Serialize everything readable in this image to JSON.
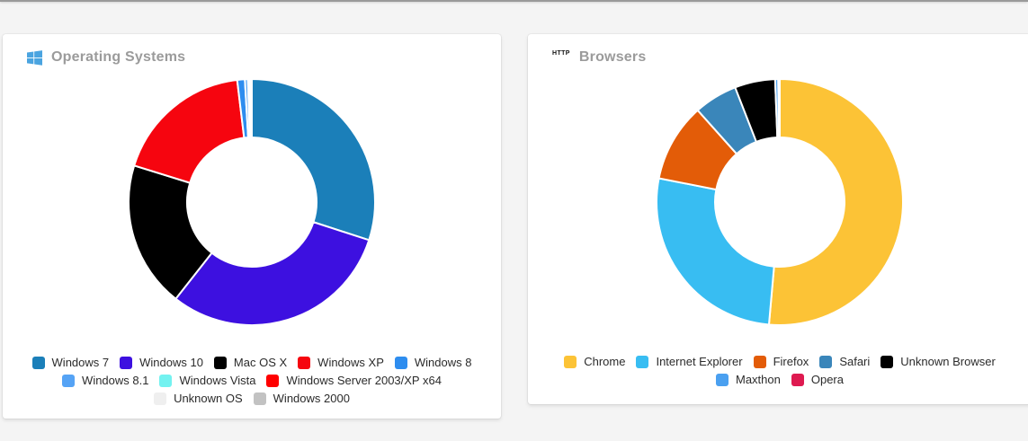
{
  "page": {
    "background": "#f4f4f4",
    "accent": "#4aa4e0"
  },
  "os_card": {
    "title": "Operating Systems",
    "icon": "windows-logo-icon",
    "icon_color": "#4AA4E0",
    "chart_data": {
      "type": "pie",
      "subtype": "donut",
      "title": "Operating Systems",
      "legend_position": "bottom",
      "units": "percent",
      "series": [
        {
          "label": "Windows 7",
          "color": "#1B7FB9",
          "value": 30.0
        },
        {
          "label": "Windows 10",
          "color": "#3D10E0",
          "value": 30.6
        },
        {
          "label": "Mac OS X",
          "color": "#000000",
          "value": 19.2
        },
        {
          "label": "Windows XP",
          "color": "#F6050F",
          "value": 18.3
        },
        {
          "label": "Windows 8",
          "color": "#2E8DEF",
          "value": 1.0
        },
        {
          "label": "Windows 8.1",
          "color": "#55A3F5",
          "value": 0.4
        },
        {
          "label": "Windows Vista",
          "color": "#73F2F0",
          "value": 0.2
        },
        {
          "label": "Windows Server 2003/XP x64",
          "color": "#FF0000",
          "value": 0.2
        },
        {
          "label": "Unknown OS",
          "color": "#EFEFEF",
          "value": 0.05
        },
        {
          "label": "Windows 2000",
          "color": "#C2C2C2",
          "value": 0.05
        }
      ]
    }
  },
  "browsers_card": {
    "title": "Browsers",
    "icon": "http-icon",
    "icon_label": "HTTP",
    "chart_data": {
      "type": "pie",
      "subtype": "donut",
      "title": "Browsers",
      "legend_position": "bottom",
      "units": "percent",
      "series": [
        {
          "label": "Chrome",
          "color": "#FCC336",
          "value": 51.4
        },
        {
          "label": "Internet Explorer",
          "color": "#38BDF2",
          "value": 26.7
        },
        {
          "label": "Firefox",
          "color": "#E35C08",
          "value": 10.3
        },
        {
          "label": "Safari",
          "color": "#3A86BA",
          "value": 5.7
        },
        {
          "label": "Unknown Browser",
          "color": "#000000",
          "value": 5.3
        },
        {
          "label": "Maxthon",
          "color": "#4AA0F0",
          "value": 0.4
        },
        {
          "label": "Opera",
          "color": "#DE1A50",
          "value": 0.2
        }
      ]
    }
  }
}
